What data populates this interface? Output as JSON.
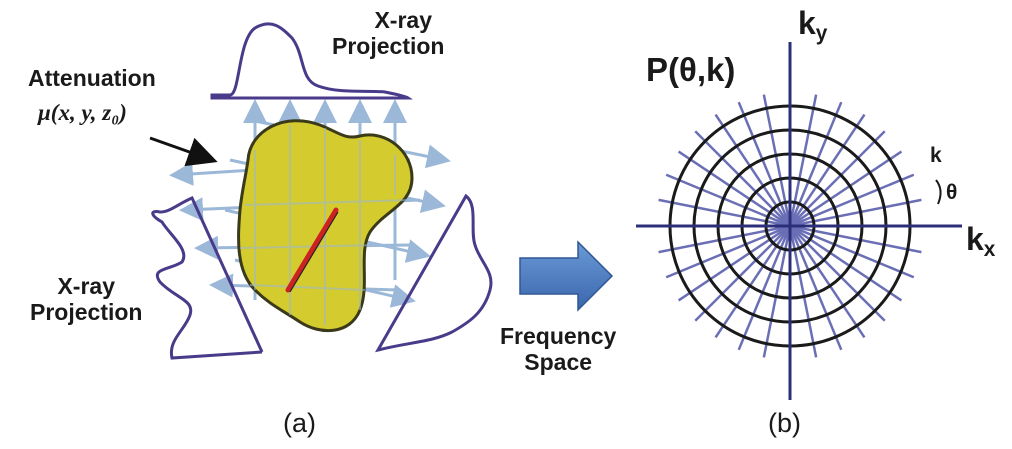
{
  "panel_a": {
    "top_projection_label": [
      "X-ray",
      "Projection"
    ],
    "left_projection_label": [
      "X-ray",
      "Projection"
    ],
    "attenuation_label": "Attenuation",
    "attenuation_formula": "μ(x, y, z₀)",
    "caption": "(a)"
  },
  "transition": {
    "label": [
      "Frequency",
      "Space"
    ],
    "arrow_color": "#4a7cc0"
  },
  "panel_b": {
    "function_label": "P(θ,k)",
    "axis_y_label": "ky",
    "axis_x_label": "kx",
    "radius_label": "k",
    "angle_label": "θ",
    "caption": "(b)",
    "ring_count": 5,
    "spoke_count": 16,
    "line_color": "#2b2f7a",
    "spoke_color": "#6a6fb5"
  },
  "colors": {
    "object_fill": "#d4cb2e",
    "object_stroke": "#3a3a1a",
    "ray_color": "#9bb8d8",
    "projection_stroke": "#4a3a8a",
    "highlight_red": "#cc2222"
  }
}
